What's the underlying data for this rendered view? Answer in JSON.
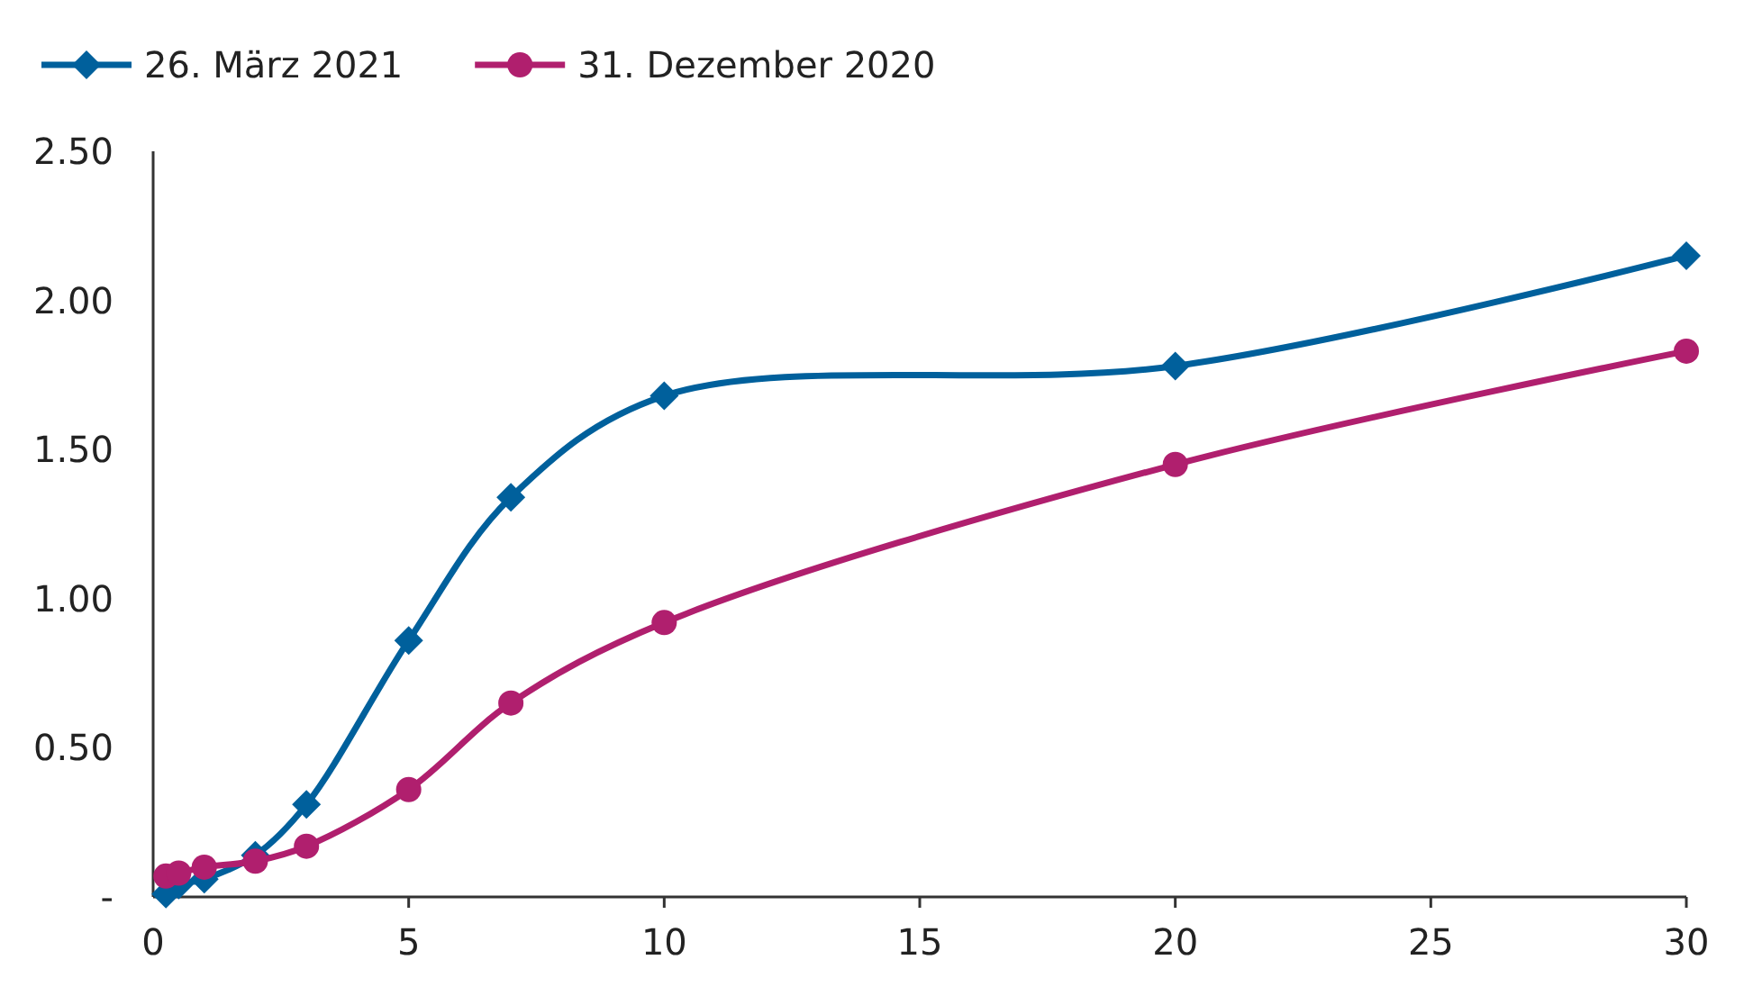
{
  "chart_data": {
    "type": "line",
    "x": [
      0.25,
      0.5,
      1,
      2,
      3,
      5,
      7,
      10,
      20,
      30
    ],
    "series": [
      {
        "name": "26. März 2021",
        "color": "#00609c",
        "marker": "diamond",
        "values": [
          0.01,
          0.04,
          0.06,
          0.14,
          0.31,
          0.86,
          1.34,
          1.68,
          1.78,
          2.15
        ]
      },
      {
        "name": "31. Dezember 2020",
        "color": "#b01f6e",
        "marker": "circle",
        "values": [
          0.07,
          0.08,
          0.1,
          0.12,
          0.17,
          0.36,
          0.65,
          0.92,
          1.45,
          1.83
        ]
      }
    ],
    "xlim": [
      0,
      30
    ],
    "xticks": [
      0,
      5,
      10,
      15,
      20,
      25,
      30
    ],
    "ylim": [
      0,
      2.5
    ],
    "yticks": [
      {
        "value": 0,
        "label": "-"
      },
      {
        "value": 0.5,
        "label": "0.50"
      },
      {
        "value": 1,
        "label": "1.00"
      },
      {
        "value": 1.5,
        "label": "1.50"
      },
      {
        "value": 2,
        "label": "2.00"
      },
      {
        "value": 2.5,
        "label": "2.50"
      }
    ],
    "grid": false,
    "legend": "top left"
  }
}
